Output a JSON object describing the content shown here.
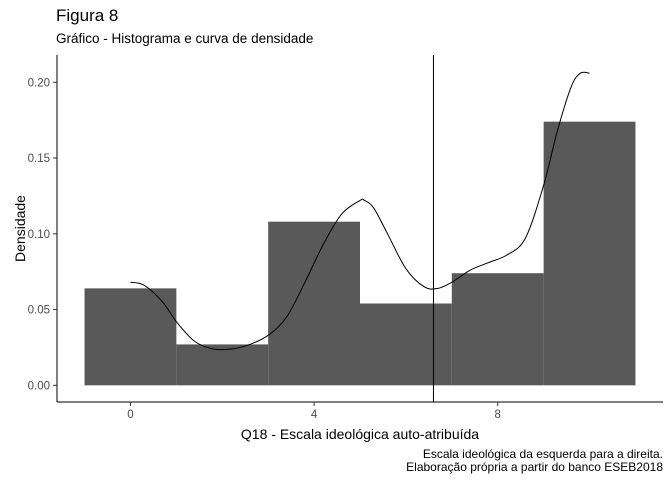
{
  "title": "Figura 8",
  "subtitle": "Gráfico - Histograma e curva de densidade",
  "caption": {
    "line1": "Escala ideológica da esquerda para a direita.",
    "line2": "Elaboração própria a partir do banco ESEB2018"
  },
  "colors": {
    "bar_fill": "#595959",
    "line": "#000000",
    "axis": "#000000",
    "tick_text": "#4d4d4d"
  },
  "chart_data": {
    "type": "bar",
    "subtype": "histogram_with_density",
    "xlabel": "Q18 - Escala ideológica auto-atribuída",
    "ylabel": "Densidade",
    "xlim": [
      -1.6,
      11.6
    ],
    "ylim": [
      -0.011,
      0.218
    ],
    "x_ticks": [
      0,
      4,
      8
    ],
    "y_ticks": [
      0.0,
      0.05,
      0.1,
      0.15,
      0.2
    ],
    "y_tick_labels": [
      "0.00",
      "0.05",
      "0.10",
      "0.15",
      "0.20"
    ],
    "grid": false,
    "bins": [
      {
        "x0": -1,
        "x1": 1,
        "density": 0.064
      },
      {
        "x0": 1,
        "x1": 3,
        "density": 0.027
      },
      {
        "x0": 3,
        "x1": 5,
        "density": 0.108
      },
      {
        "x0": 5,
        "x1": 7,
        "density": 0.054
      },
      {
        "x0": 7,
        "x1": 9,
        "density": 0.074
      },
      {
        "x0": 9,
        "x1": 11,
        "density": 0.174
      }
    ],
    "density_curve": {
      "x": [
        0,
        0.3,
        0.7,
        1.0,
        1.4,
        1.8,
        2.2,
        2.6,
        3.0,
        3.4,
        3.8,
        4.2,
        4.6,
        5.0,
        5.1,
        5.3,
        5.6,
        6.0,
        6.4,
        6.7,
        7.0,
        7.4,
        7.8,
        8.2,
        8.6,
        9.0,
        9.3,
        9.6,
        9.8,
        10.0
      ],
      "y": [
        0.068,
        0.066,
        0.055,
        0.042,
        0.029,
        0.024,
        0.024,
        0.027,
        0.033,
        0.045,
        0.068,
        0.093,
        0.113,
        0.122,
        0.122,
        0.117,
        0.1,
        0.077,
        0.065,
        0.064,
        0.068,
        0.076,
        0.081,
        0.086,
        0.097,
        0.132,
        0.168,
        0.197,
        0.206,
        0.206
      ]
    },
    "vline": {
      "x": 6.6
    }
  }
}
